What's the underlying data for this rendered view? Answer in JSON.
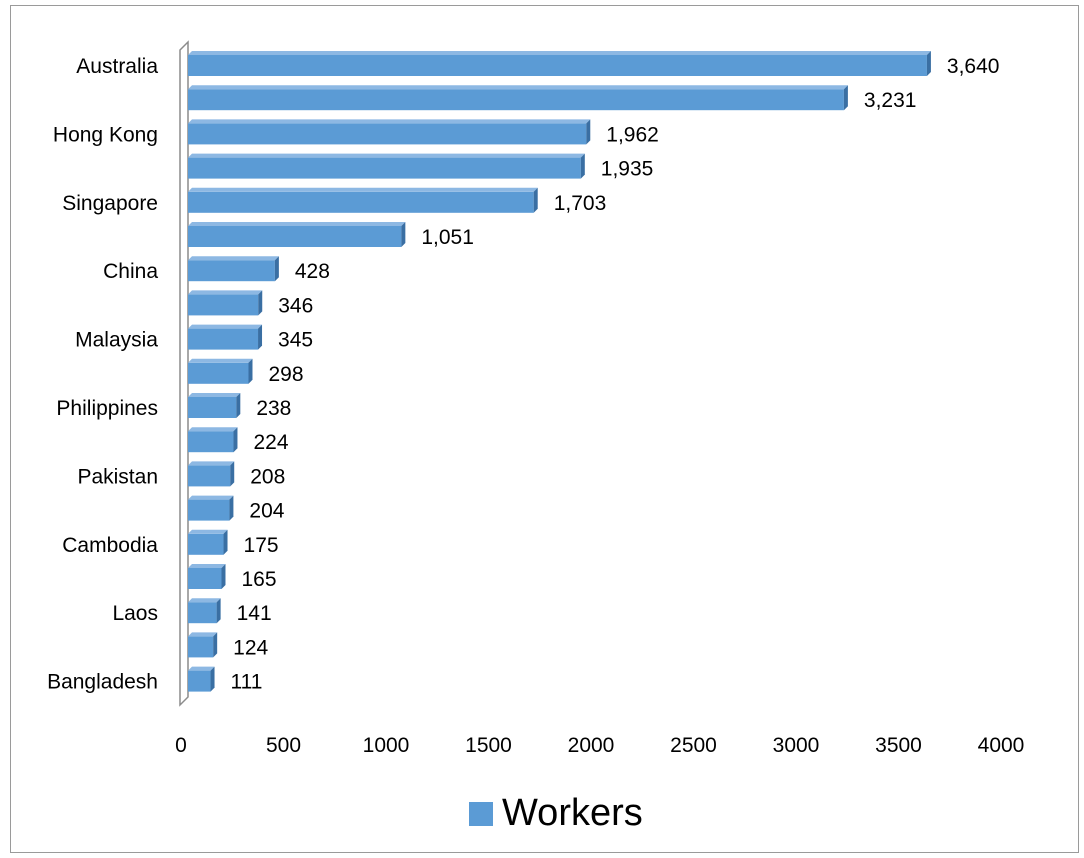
{
  "chart_data": {
    "type": "bar",
    "orientation": "horizontal",
    "categories": [
      "Australia",
      "",
      "Hong Kong",
      "",
      "Singapore",
      "",
      "China",
      "",
      "Malaysia",
      "",
      "Philippines",
      "",
      "Pakistan",
      "",
      "Cambodia",
      "",
      "Laos",
      "",
      "Bangladesh"
    ],
    "series": [
      {
        "name": "Workers",
        "values": [
          3640,
          3231,
          1962,
          1935,
          1703,
          1051,
          428,
          346,
          345,
          298,
          238,
          224,
          208,
          204,
          175,
          165,
          141,
          124,
          111
        ],
        "labels": [
          "3,640",
          "3,231",
          "1,962",
          "1,935",
          "1,703",
          "1,051",
          "428",
          "346",
          "345",
          "298",
          "238",
          "224",
          "208",
          "204",
          "175",
          "165",
          "141",
          "124",
          "111"
        ]
      }
    ],
    "x_ticks": [
      "0",
      "500",
      "1000",
      "1500",
      "2000",
      "2500",
      "3000",
      "3500",
      "4000"
    ],
    "xlim": [
      0,
      4000
    ],
    "grid": false,
    "legend_position": "bottom",
    "colors": {
      "bar": "#5b9bd5",
      "bar_top": "#8db8e3",
      "bar_side": "#3a6fa3",
      "axis": "#8c8c8c"
    }
  }
}
